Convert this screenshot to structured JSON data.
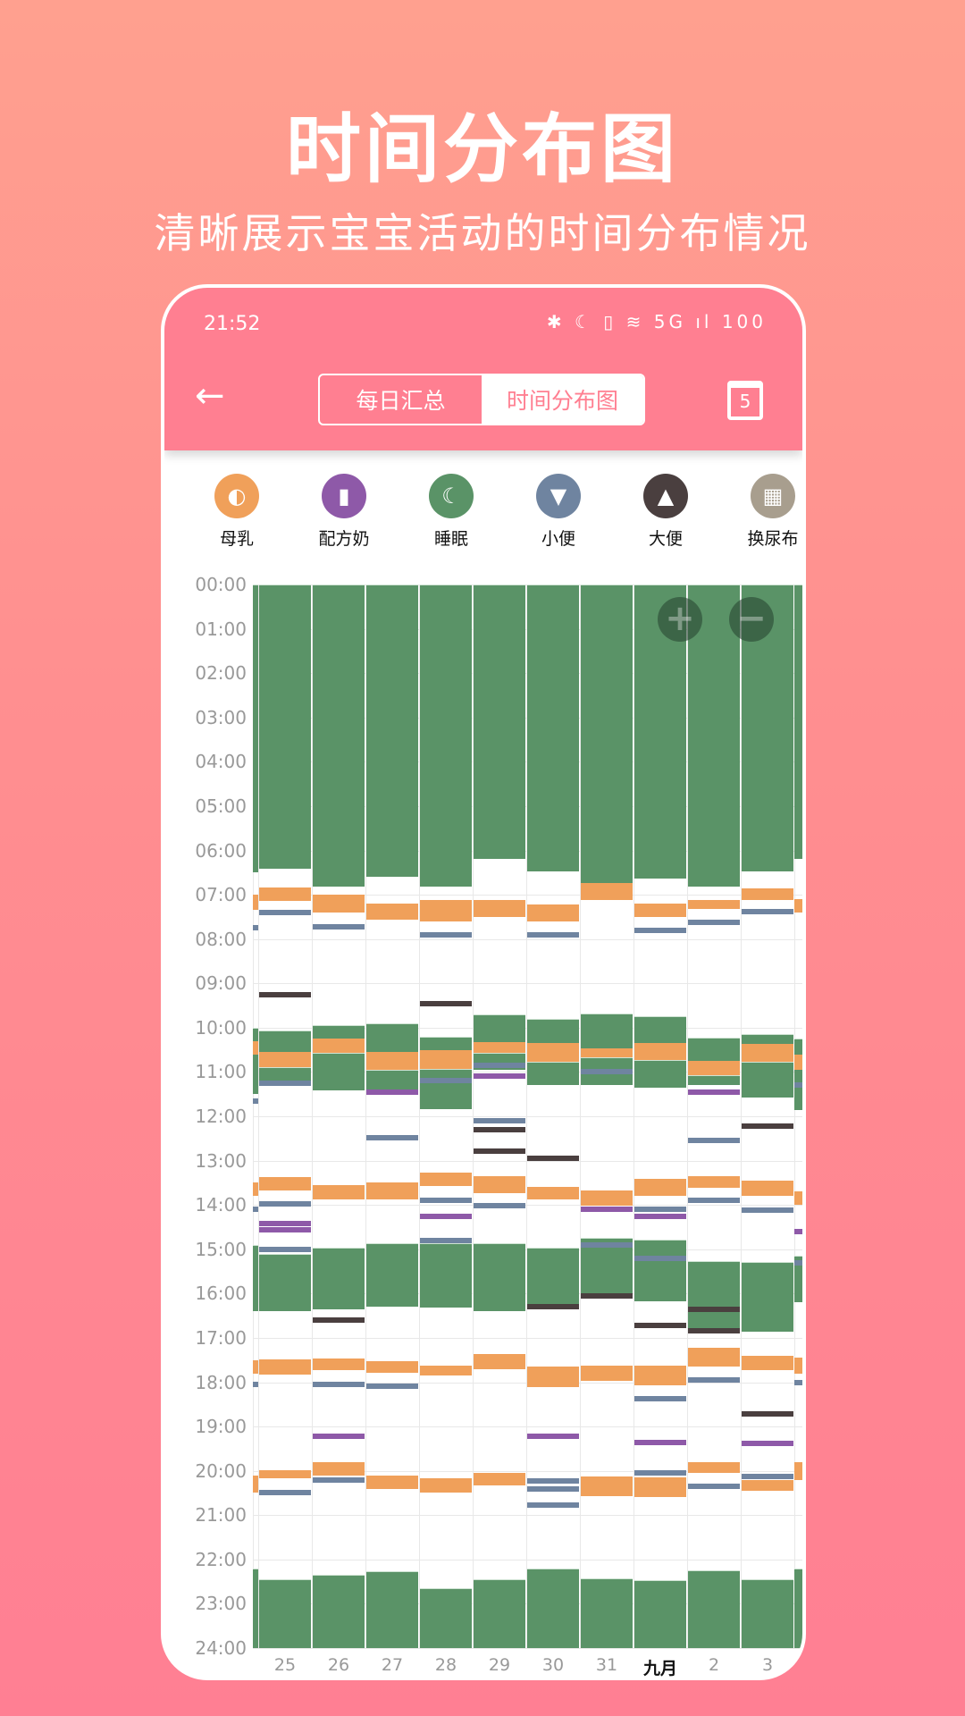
{
  "promo": {
    "title": "时间分布图",
    "subtitle": "清晰展示宝宝活动的时间分布情况"
  },
  "status_bar": {
    "time": "21:52",
    "icons": "✱ ☾ ▯ ≋ 5G ıl 100"
  },
  "toolbar": {
    "back_icon": "arrow-left-icon",
    "tabs": [
      {
        "label": "每日汇总",
        "selected": false
      },
      {
        "label": "时间分布图",
        "selected": true
      }
    ],
    "calendar_day": "5"
  },
  "legend": [
    {
      "label": "母乳",
      "type": "breast",
      "color": "#f0a05a",
      "icon": "◐"
    },
    {
      "label": "配方奶",
      "type": "formula",
      "color": "#8e59a8",
      "icon": "▮"
    },
    {
      "label": "睡眠",
      "type": "sleep",
      "color": "#5a9367",
      "icon": "☾"
    },
    {
      "label": "小便",
      "type": "urine",
      "color": "#6f84a0",
      "icon": "▼"
    },
    {
      "label": "大便",
      "type": "poop",
      "color": "#4a3f3f",
      "icon": "▲"
    },
    {
      "label": "换尿布",
      "type": "diaper",
      "color": "#a89e8e",
      "icon": "▦"
    }
  ],
  "zoom": {
    "in": "+",
    "out": "−"
  },
  "chart_data": {
    "type": "timeline",
    "y_ticks": [
      "00:00",
      "01:00",
      "02:00",
      "03:00",
      "04:00",
      "05:00",
      "06:00",
      "07:00",
      "08:00",
      "09:00",
      "10:00",
      "11:00",
      "12:00",
      "13:00",
      "14:00",
      "15:00",
      "16:00",
      "17:00",
      "18:00",
      "19:00",
      "20:00",
      "21:00",
      "22:00",
      "23:00",
      "24:00"
    ],
    "ylim": [
      0,
      24
    ],
    "grid": true,
    "days": [
      {
        "label": "",
        "bold": false,
        "events": [
          [
            "sleep",
            0,
            6.5
          ],
          [
            "breast",
            7.0,
            7.35
          ],
          [
            "urine",
            7.75
          ],
          [
            "sleep",
            10.0,
            11.5
          ],
          [
            "breast",
            10.3,
            10.6
          ],
          [
            "urine",
            11.65
          ],
          [
            "breast",
            13.5,
            13.8
          ],
          [
            "urine",
            14.1
          ],
          [
            "sleep",
            14.9,
            16.4
          ],
          [
            "breast",
            17.5,
            17.8
          ],
          [
            "urine",
            18.05
          ],
          [
            "breast",
            20.1,
            20.5
          ],
          [
            "sleep",
            22.2,
            24
          ]
        ]
      },
      {
        "label": "25",
        "bold": false,
        "events": [
          [
            "sleep",
            0,
            6.42
          ],
          [
            "breast",
            6.84,
            7.14
          ],
          [
            "urine",
            7.41
          ],
          [
            "poop",
            9.26
          ],
          [
            "sleep",
            10.07,
            10.54
          ],
          [
            "breast",
            10.54,
            10.9
          ],
          [
            "sleep",
            10.9,
            11.23
          ],
          [
            "urine",
            11.25
          ],
          [
            "breast",
            13.38,
            13.68
          ],
          [
            "urine",
            13.98
          ],
          [
            "formula",
            14.42
          ],
          [
            "formula",
            14.57
          ],
          [
            "urine",
            15.0
          ],
          [
            "sleep",
            15.1,
            16.4
          ],
          [
            "breast",
            17.48,
            17.83
          ],
          [
            "breast",
            19.98,
            20.17
          ],
          [
            "urine",
            20.49
          ],
          [
            "sleep",
            22.44,
            24
          ]
        ]
      },
      {
        "label": "26",
        "bold": false,
        "events": [
          [
            "sleep",
            0,
            6.81
          ],
          [
            "breast",
            6.99,
            7.41
          ],
          [
            "urine",
            7.73
          ],
          [
            "sleep",
            9.95,
            10.25
          ],
          [
            "breast",
            10.25,
            10.57
          ],
          [
            "sleep",
            10.57,
            11.41
          ],
          [
            "breast",
            13.56,
            13.88
          ],
          [
            "sleep",
            14.96,
            16.35
          ],
          [
            "poop",
            16.6
          ],
          [
            "breast",
            17.46,
            17.73
          ],
          [
            "urine",
            18.05
          ],
          [
            "formula",
            19.23
          ],
          [
            "breast",
            19.8,
            20.1
          ],
          [
            "urine",
            20.2
          ],
          [
            "sleep",
            22.35,
            24
          ]
        ]
      },
      {
        "label": "27",
        "bold": false,
        "events": [
          [
            "sleep",
            0,
            6.59
          ],
          [
            "breast",
            7.2,
            7.56
          ],
          [
            "sleep",
            9.9,
            10.54
          ],
          [
            "breast",
            10.54,
            10.96
          ],
          [
            "sleep",
            10.96,
            11.4
          ],
          [
            "formula",
            11.46
          ],
          [
            "urine",
            12.49
          ],
          [
            "breast",
            13.5,
            13.88
          ],
          [
            "sleep",
            14.86,
            16.3
          ],
          [
            "breast",
            17.53,
            17.78
          ],
          [
            "urine",
            18.1
          ],
          [
            "breast",
            20.1,
            20.42
          ],
          [
            "sleep",
            22.27,
            24
          ]
        ]
      },
      {
        "label": "28",
        "bold": false,
        "events": [
          [
            "sleep",
            0,
            6.81
          ],
          [
            "breast",
            7.11,
            7.6
          ],
          [
            "urine",
            7.9
          ],
          [
            "poop",
            9.46
          ],
          [
            "sleep",
            10.2,
            10.5
          ],
          [
            "breast",
            10.5,
            10.94
          ],
          [
            "sleep",
            10.94,
            11.83
          ],
          [
            "urine",
            11.2
          ],
          [
            "breast",
            13.28,
            13.58
          ],
          [
            "urine",
            13.9
          ],
          [
            "formula",
            14.25
          ],
          [
            "urine",
            14.8
          ],
          [
            "sleep",
            14.86,
            16.32
          ],
          [
            "breast",
            17.63,
            17.85
          ],
          [
            "breast",
            20.17,
            20.49
          ],
          [
            "sleep",
            22.64,
            24
          ]
        ]
      },
      {
        "label": "29",
        "bold": false,
        "events": [
          [
            "sleep",
            0,
            6.2
          ],
          [
            "breast",
            7.11,
            7.5
          ],
          [
            "sleep",
            9.7,
            10.32
          ],
          [
            "breast",
            10.32,
            10.57
          ],
          [
            "sleep",
            10.57,
            10.96
          ],
          [
            "urine",
            10.85
          ],
          [
            "formula",
            11.09
          ],
          [
            "urine",
            12.1
          ],
          [
            "poop",
            12.3
          ],
          [
            "poop",
            12.79
          ],
          [
            "breast",
            13.36,
            13.73
          ],
          [
            "urine",
            14.02
          ],
          [
            "sleep",
            14.86,
            16.4
          ],
          [
            "breast",
            17.36,
            17.7
          ],
          [
            "breast",
            20.05,
            20.32
          ],
          [
            "sleep",
            22.44,
            24
          ]
        ]
      },
      {
        "label": "30",
        "bold": false,
        "events": [
          [
            "sleep",
            0,
            6.47
          ],
          [
            "breast",
            7.23,
            7.6
          ],
          [
            "urine",
            7.9
          ],
          [
            "sleep",
            9.8,
            10.35
          ],
          [
            "breast",
            10.35,
            10.77
          ],
          [
            "sleep",
            10.77,
            11.3
          ],
          [
            "poop",
            12.94
          ],
          [
            "breast",
            13.6,
            13.88
          ],
          [
            "sleep",
            14.96,
            16.25
          ],
          [
            "poop",
            16.3
          ],
          [
            "breast",
            17.65,
            18.12
          ],
          [
            "formula",
            19.23
          ],
          [
            "urine",
            20.22
          ],
          [
            "urine",
            20.4
          ],
          [
            "urine",
            20.77
          ],
          [
            "sleep",
            22.2,
            24
          ]
        ]
      },
      {
        "label": "31",
        "bold": false,
        "events": [
          [
            "sleep",
            0,
            6.74
          ],
          [
            "breast",
            6.74,
            7.11
          ],
          [
            "sleep",
            9.68,
            10.47
          ],
          [
            "breast",
            10.47,
            10.67
          ],
          [
            "sleep",
            10.67,
            11.3
          ],
          [
            "urine",
            11.0
          ],
          [
            "breast",
            13.68,
            14.02
          ],
          [
            "formula",
            14.1
          ],
          [
            "sleep",
            14.74,
            16.02
          ],
          [
            "urine",
            14.91
          ],
          [
            "poop",
            16.05
          ],
          [
            "breast",
            17.63,
            17.98
          ],
          [
            "breast",
            20.12,
            20.57
          ],
          [
            "sleep",
            22.42,
            24
          ]
        ]
      },
      {
        "label": "九月",
        "bold": true,
        "events": [
          [
            "sleep",
            0,
            6.64
          ],
          [
            "breast",
            7.2,
            7.5
          ],
          [
            "urine",
            7.8
          ],
          [
            "sleep",
            9.75,
            10.35
          ],
          [
            "breast",
            10.35,
            10.72
          ],
          [
            "sleep",
            10.72,
            11.35
          ],
          [
            "breast",
            13.41,
            13.8
          ],
          [
            "urine",
            14.1
          ],
          [
            "formula",
            14.25
          ],
          [
            "sleep",
            14.79,
            16.17
          ],
          [
            "urine",
            15.2
          ],
          [
            "poop",
            16.72
          ],
          [
            "breast",
            17.63,
            18.07
          ],
          [
            "urine",
            18.37
          ],
          [
            "formula",
            19.36
          ],
          [
            "urine",
            20.05
          ],
          [
            "breast",
            20.15,
            20.6
          ],
          [
            "sleep",
            22.47,
            24
          ]
        ]
      },
      {
        "label": "2",
        "bold": false,
        "events": [
          [
            "sleep",
            0,
            6.81
          ],
          [
            "breast",
            7.11,
            7.33
          ],
          [
            "urine",
            7.63
          ],
          [
            "sleep",
            10.22,
            10.74
          ],
          [
            "breast",
            10.74,
            11.08
          ],
          [
            "sleep",
            11.08,
            11.3
          ],
          [
            "formula",
            11.46
          ],
          [
            "urine",
            12.54
          ],
          [
            "breast",
            13.35,
            13.62
          ],
          [
            "urine",
            13.9
          ],
          [
            "sleep",
            15.26,
            16.86
          ],
          [
            "poop",
            16.35
          ],
          [
            "poop",
            16.85
          ],
          [
            "breast",
            17.23,
            17.65
          ],
          [
            "urine",
            17.95
          ],
          [
            "breast",
            19.8,
            20.05
          ],
          [
            "urine",
            20.35
          ],
          [
            "sleep",
            22.25,
            24
          ]
        ]
      },
      {
        "label": "3",
        "bold": false,
        "events": [
          [
            "sleep",
            0,
            6.47
          ],
          [
            "breast",
            6.86,
            7.11
          ],
          [
            "urine",
            7.38
          ],
          [
            "sleep",
            10.15,
            10.37
          ],
          [
            "breast",
            10.37,
            10.77
          ],
          [
            "sleep",
            10.77,
            11.58
          ],
          [
            "poop",
            12.22
          ],
          [
            "breast",
            13.46,
            13.8
          ],
          [
            "urine",
            14.12
          ],
          [
            "sleep",
            15.28,
            16.86
          ],
          [
            "breast",
            17.41,
            17.73
          ],
          [
            "poop",
            18.72
          ],
          [
            "formula",
            19.38
          ],
          [
            "urine",
            20.12
          ],
          [
            "breast",
            20.2,
            20.45
          ],
          [
            "sleep",
            22.44,
            24
          ]
        ]
      },
      {
        "label": "",
        "bold": false,
        "events": [
          [
            "sleep",
            0,
            6.2
          ],
          [
            "breast",
            7.1,
            7.4
          ],
          [
            "sleep",
            10.25,
            11.85
          ],
          [
            "breast",
            10.6,
            10.95
          ],
          [
            "urine",
            11.3
          ],
          [
            "breast",
            13.7,
            14.0
          ],
          [
            "formula",
            14.6
          ],
          [
            "sleep",
            15.15,
            16.2
          ],
          [
            "urine",
            15.3
          ],
          [
            "breast",
            17.45,
            17.8
          ],
          [
            "urine",
            18.0
          ],
          [
            "breast",
            19.8,
            20.2
          ],
          [
            "sleep",
            22.2,
            24
          ]
        ]
      }
    ]
  }
}
